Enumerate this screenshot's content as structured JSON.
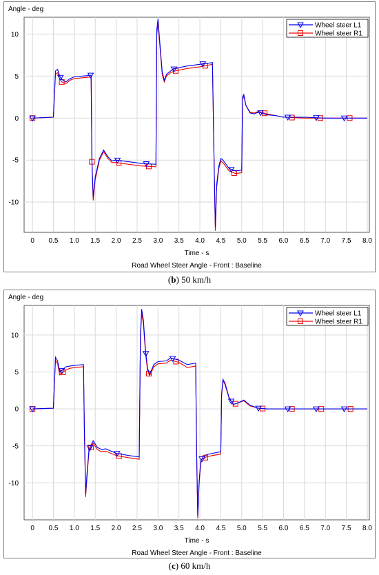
{
  "chart_data": [
    {
      "type": "line",
      "panel_caption": {
        "label": "b",
        "speed": "50 km/h"
      },
      "ylabel": "Angle - deg",
      "xlabel": "Time - s",
      "footer": "Road Wheel Steer Angle - Front : Baseline",
      "xlim": [
        -0.2,
        8.05
      ],
      "ylim": [
        -13.6,
        12.0
      ],
      "xticks": [
        "0",
        "0.5",
        "1.0",
        "1.5",
        "2.0",
        "2.5",
        "3.0",
        "3.5",
        "4.0",
        "4.5",
        "5.0",
        "5.5",
        "6.0",
        "6.5",
        "7.0",
        "7.5",
        "8.0"
      ],
      "yticks": [
        10,
        5,
        0,
        -5,
        -10
      ],
      "grid": true,
      "legend_position": "top-right",
      "series": [
        {
          "name": "Wheel steer L1",
          "color": "#0000ee",
          "marker": "triangle-down",
          "x": [
            0,
            0.5,
            0.55,
            0.6,
            0.65,
            0.7,
            0.8,
            0.9,
            1.0,
            1.2,
            1.4,
            1.42,
            1.45,
            1.5,
            1.6,
            1.7,
            1.8,
            1.9,
            2.0,
            2.3,
            2.6,
            2.95,
            2.97,
            3.0,
            3.05,
            3.1,
            3.15,
            3.2,
            3.3,
            3.4,
            3.7,
            4.0,
            4.3,
            4.35,
            4.37,
            4.4,
            4.45,
            4.5,
            4.55,
            4.7,
            4.85,
            5.0,
            5.02,
            5.05,
            5.1,
            5.2,
            5.3,
            5.4,
            5.6,
            5.8,
            6.0,
            6.5,
            7.0,
            8.0
          ],
          "y": [
            0,
            0.1,
            5.6,
            5.8,
            5.0,
            4.6,
            4.3,
            4.7,
            4.9,
            5.0,
            5.1,
            -5.0,
            -9.4,
            -7.0,
            -4.8,
            -3.8,
            -4.6,
            -5.1,
            -5.0,
            -5.2,
            -5.4,
            -5.5,
            10.5,
            11.8,
            8.5,
            5.5,
            4.5,
            5.2,
            5.6,
            5.9,
            6.2,
            6.4,
            6.6,
            -8.0,
            -13.0,
            -8.0,
            -5.8,
            -4.8,
            -5.0,
            -6.0,
            -6.3,
            -6.2,
            2.5,
            2.8,
            1.5,
            0.6,
            0.5,
            0.7,
            0.4,
            0.3,
            0.1,
            0.1,
            0.0,
            0.0
          ],
          "markers_x": [
            0,
            0.67,
            1.39,
            2.03,
            2.72,
            3.38,
            4.07,
            4.75,
            5.45,
            6.1,
            6.78,
            7.45
          ]
        },
        {
          "name": "Wheel steer R1",
          "color": "#ee0000",
          "marker": "square",
          "x": [
            0,
            0.5,
            0.55,
            0.6,
            0.65,
            0.7,
            0.8,
            0.9,
            1.0,
            1.2,
            1.4,
            1.42,
            1.45,
            1.5,
            1.6,
            1.7,
            1.8,
            1.9,
            2.0,
            2.3,
            2.6,
            2.95,
            2.97,
            3.0,
            3.05,
            3.1,
            3.15,
            3.2,
            3.3,
            3.4,
            3.7,
            4.0,
            4.3,
            4.35,
            4.37,
            4.4,
            4.45,
            4.5,
            4.55,
            4.7,
            4.85,
            5.0,
            5.02,
            5.05,
            5.1,
            5.2,
            5.3,
            5.4,
            5.6,
            5.8,
            6.0,
            6.5,
            7.0,
            8.0
          ],
          "y": [
            0,
            0.1,
            5.2,
            5.4,
            4.7,
            4.3,
            4.1,
            4.5,
            4.7,
            4.8,
            4.9,
            -5.2,
            -9.8,
            -7.3,
            -5.0,
            -4.0,
            -4.8,
            -5.3,
            -5.3,
            -5.5,
            -5.7,
            -5.8,
            10.0,
            11.3,
            8.2,
            5.2,
            4.3,
            5.0,
            5.4,
            5.6,
            5.9,
            6.1,
            6.4,
            -8.4,
            -13.4,
            -8.4,
            -6.1,
            -5.1,
            -5.3,
            -6.3,
            -6.6,
            -6.5,
            2.2,
            2.6,
            1.5,
            0.7,
            0.6,
            0.8,
            0.5,
            0.3,
            0.1,
            0.0,
            0.0,
            0.0
          ],
          "markers_x": [
            0,
            0.7,
            1.42,
            2.06,
            2.78,
            3.42,
            4.13,
            4.82,
            5.55,
            6.2,
            6.88,
            7.58
          ]
        }
      ]
    },
    {
      "type": "line",
      "panel_caption": {
        "label": "c",
        "speed": "60 km/h"
      },
      "ylabel": "Angle - deg",
      "xlabel": "Time - s",
      "footer": "Road Wheel Steer Angle - Front : Baseline",
      "xlim": [
        -0.2,
        8.05
      ],
      "ylim": [
        -15.0,
        14.0
      ],
      "xticks": [
        "0",
        "0.5",
        "1.0",
        "1.5",
        "2.0",
        "2.5",
        "3.0",
        "3.5",
        "4.0",
        "4.5",
        "5.0",
        "5.5",
        "6.0",
        "6.5",
        "7.0",
        "7.5",
        "8.0"
      ],
      "yticks": [
        10,
        5,
        0,
        -5,
        -10
      ],
      "grid": true,
      "legend_position": "top-right",
      "series": [
        {
          "name": "Wheel steer L1",
          "color": "#0000ee",
          "marker": "triangle-down",
          "x": [
            0,
            0.5,
            0.55,
            0.6,
            0.65,
            0.7,
            0.8,
            0.9,
            1.0,
            1.22,
            1.24,
            1.27,
            1.3,
            1.35,
            1.45,
            1.55,
            1.65,
            1.75,
            2.0,
            2.3,
            2.55,
            2.58,
            2.61,
            2.65,
            2.7,
            2.75,
            2.8,
            2.9,
            3.0,
            3.2,
            3.3,
            3.5,
            3.7,
            3.9,
            3.92,
            3.95,
            3.98,
            4.02,
            4.08,
            4.15,
            4.3,
            4.5,
            4.52,
            4.55,
            4.6,
            4.7,
            4.8,
            4.9,
            5.05,
            5.2,
            5.4,
            5.6,
            6.0,
            8.0
          ],
          "y": [
            0,
            0.1,
            7.0,
            6.5,
            5.0,
            5.2,
            5.7,
            5.8,
            5.9,
            6.0,
            -2.5,
            -11.5,
            -9.0,
            -5.5,
            -4.3,
            -5.2,
            -5.5,
            -5.4,
            -6.0,
            -6.3,
            -6.5,
            10.0,
            13.5,
            12.0,
            8.0,
            5.5,
            4.7,
            6.0,
            6.4,
            6.5,
            6.9,
            6.6,
            6.0,
            6.2,
            -5.0,
            -14.5,
            -10.0,
            -7.0,
            -6.5,
            -6.2,
            -6.0,
            -5.8,
            2.0,
            4.0,
            3.5,
            1.5,
            0.6,
            0.8,
            1.2,
            0.5,
            0.1,
            0.0,
            0.0,
            0.0
          ],
          "markers_x": [
            0,
            0.7,
            1.37,
            2.02,
            2.71,
            3.35,
            4.05,
            4.75,
            5.4,
            6.1,
            6.78,
            7.45
          ]
        },
        {
          "name": "Wheel steer R1",
          "color": "#ee0000",
          "marker": "square",
          "x": [
            0,
            0.5,
            0.55,
            0.6,
            0.65,
            0.7,
            0.8,
            0.9,
            1.0,
            1.22,
            1.24,
            1.27,
            1.3,
            1.35,
            1.45,
            1.55,
            1.65,
            1.75,
            2.0,
            2.3,
            2.55,
            2.58,
            2.61,
            2.65,
            2.7,
            2.75,
            2.8,
            2.9,
            3.0,
            3.2,
            3.3,
            3.5,
            3.7,
            3.9,
            3.92,
            3.95,
            3.98,
            4.02,
            4.08,
            4.15,
            4.3,
            4.5,
            4.52,
            4.55,
            4.6,
            4.7,
            4.8,
            4.9,
            5.05,
            5.2,
            5.4,
            5.6,
            6.0,
            8.0
          ],
          "y": [
            0,
            0.1,
            6.6,
            6.1,
            4.6,
            4.8,
            5.3,
            5.5,
            5.6,
            5.7,
            -2.8,
            -11.9,
            -9.4,
            -5.8,
            -4.6,
            -5.5,
            -5.8,
            -5.7,
            -6.3,
            -6.6,
            -6.8,
            9.5,
            13.0,
            11.5,
            7.6,
            5.2,
            4.5,
            5.7,
            6.1,
            6.2,
            6.6,
            6.3,
            5.6,
            5.8,
            -5.4,
            -14.8,
            -10.4,
            -7.3,
            -6.8,
            -6.5,
            -6.3,
            -6.1,
            1.8,
            3.8,
            3.3,
            1.4,
            0.6,
            0.8,
            1.1,
            0.4,
            0.1,
            0.0,
            0.0,
            0.0
          ],
          "markers_x": [
            0,
            0.73,
            1.4,
            2.07,
            2.78,
            3.43,
            4.13,
            4.85,
            5.5,
            6.2,
            6.9,
            7.6
          ]
        }
      ]
    }
  ]
}
